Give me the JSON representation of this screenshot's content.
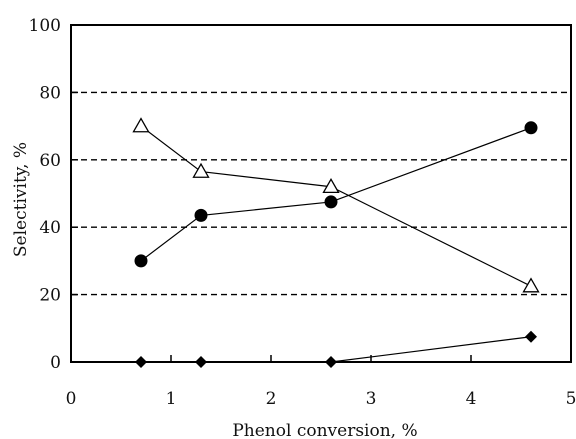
{
  "chart_data": {
    "type": "line",
    "xlabel": "Phenol conversion, %",
    "ylabel": "Selectivity, %",
    "xlim": [
      0,
      5
    ],
    "ylim": [
      0,
      100
    ],
    "xticks": [
      0,
      1,
      2,
      3,
      4,
      5
    ],
    "yticks": [
      0,
      20,
      40,
      60,
      80,
      100
    ],
    "grid": "horizontal dashed",
    "series": [
      {
        "marker": "open-triangle",
        "color": "#000000",
        "x": [
          0.7,
          1.3,
          2.6,
          4.6
        ],
        "y": [
          70,
          56.5,
          52,
          22.5
        ]
      },
      {
        "marker": "filled-circle",
        "color": "#000000",
        "x": [
          0.7,
          1.3,
          2.6,
          4.6
        ],
        "y": [
          30,
          43.5,
          47.5,
          69.5
        ]
      },
      {
        "marker": "filled-diamond",
        "color": "#000000",
        "x": [
          0.7,
          1.3,
          2.6,
          4.6
        ],
        "y": [
          0,
          0,
          0,
          7.5
        ]
      }
    ]
  }
}
